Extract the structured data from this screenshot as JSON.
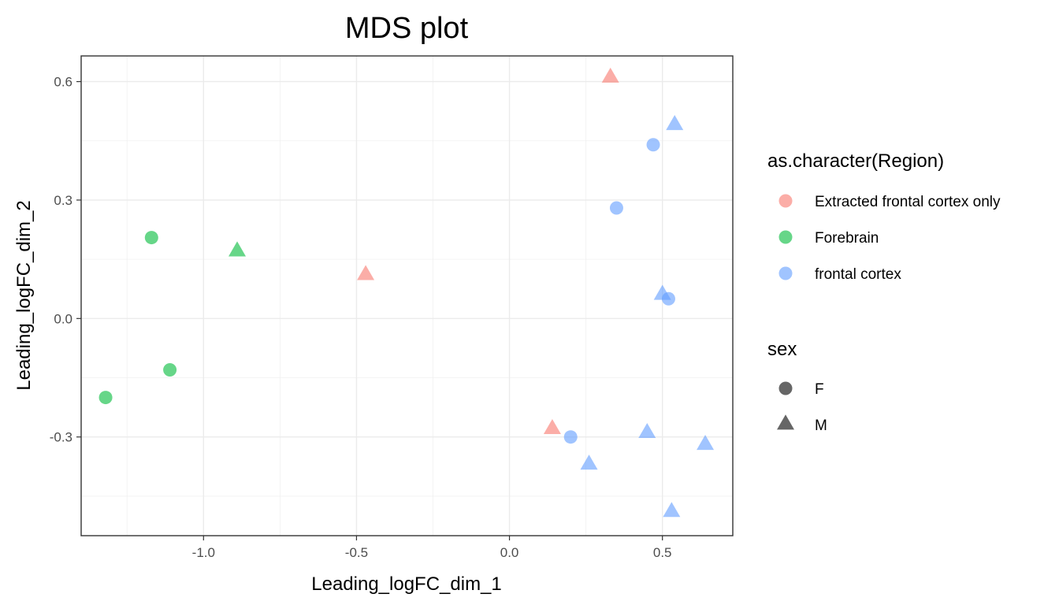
{
  "chart_data": {
    "type": "scatter",
    "title": "MDS plot",
    "xlabel": "Leading_logFC_dim_1",
    "ylabel": "Leading_logFC_dim_2",
    "xlim": [
      -1.4,
      0.73
    ],
    "ylim": [
      -0.55,
      0.665
    ],
    "x_ticks": [
      -1.0,
      -0.5,
      0.0,
      0.5
    ],
    "x_tick_labels": [
      "-1.0",
      "-0.5",
      "0.0",
      "0.5"
    ],
    "y_ticks": [
      -0.3,
      0.0,
      0.3,
      0.6
    ],
    "y_tick_labels": [
      "-0.3",
      "0.0",
      "0.3",
      "0.6"
    ],
    "grid": true,
    "legend_position": "right",
    "color_legend": {
      "title": "as.character(Region)",
      "entries": [
        {
          "label": "Extracted frontal cortex only",
          "color": "#F8766D"
        },
        {
          "label": "Forebrain",
          "color": "#00BA38"
        },
        {
          "label": "frontal cortex",
          "color": "#619CFF"
        }
      ]
    },
    "shape_legend": {
      "title": "sex",
      "entries": [
        {
          "label": "F",
          "shape": "circle"
        },
        {
          "label": "M",
          "shape": "triangle"
        }
      ]
    },
    "points": [
      {
        "x": 0.33,
        "y": 0.61,
        "region": 0,
        "shape": "triangle"
      },
      {
        "x": -0.47,
        "y": 0.11,
        "region": 0,
        "shape": "triangle"
      },
      {
        "x": 0.14,
        "y": -0.28,
        "region": 0,
        "shape": "triangle"
      },
      {
        "x": -1.17,
        "y": 0.205,
        "region": 1,
        "shape": "circle"
      },
      {
        "x": -0.89,
        "y": 0.17,
        "region": 1,
        "shape": "triangle"
      },
      {
        "x": -1.11,
        "y": -0.13,
        "region": 1,
        "shape": "circle"
      },
      {
        "x": -1.32,
        "y": -0.2,
        "region": 1,
        "shape": "circle"
      },
      {
        "x": 0.54,
        "y": 0.49,
        "region": 2,
        "shape": "triangle"
      },
      {
        "x": 0.47,
        "y": 0.44,
        "region": 2,
        "shape": "circle"
      },
      {
        "x": 0.35,
        "y": 0.28,
        "region": 2,
        "shape": "circle"
      },
      {
        "x": 0.5,
        "y": 0.06,
        "region": 2,
        "shape": "triangle"
      },
      {
        "x": 0.52,
        "y": 0.05,
        "region": 2,
        "shape": "circle"
      },
      {
        "x": 0.2,
        "y": -0.3,
        "region": 2,
        "shape": "circle"
      },
      {
        "x": 0.26,
        "y": -0.37,
        "region": 2,
        "shape": "triangle"
      },
      {
        "x": 0.45,
        "y": -0.29,
        "region": 2,
        "shape": "triangle"
      },
      {
        "x": 0.64,
        "y": -0.32,
        "region": 2,
        "shape": "triangle"
      },
      {
        "x": 0.53,
        "y": -0.49,
        "region": 2,
        "shape": "triangle"
      }
    ]
  }
}
